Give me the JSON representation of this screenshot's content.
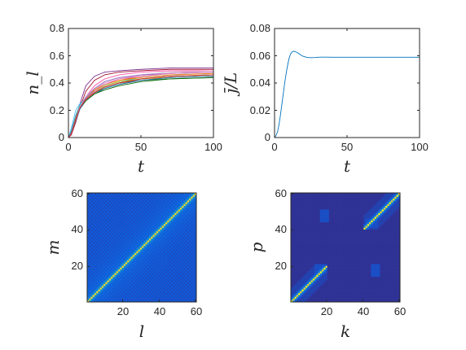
{
  "chart_data": [
    {
      "type": "line",
      "panel": "top-left",
      "xlabel": "t",
      "ylabel": "n_l",
      "xlim": [
        0,
        100
      ],
      "ylim": [
        0,
        0.8
      ],
      "xticks": [
        "0",
        "50",
        "100"
      ],
      "yticks": [
        "0",
        "0.2",
        "0.4",
        "0.6",
        "0.8"
      ],
      "grid": false,
      "legend": "none",
      "note": "approximately 20 colored curves, each rising from 0 and saturating between about 0.44 and 0.51",
      "series": [
        {
          "color": "#0072bd",
          "x": [
            0,
            2,
            5,
            8,
            12,
            18,
            25,
            35,
            50,
            70,
            100
          ],
          "y": [
            0.0,
            0.05,
            0.16,
            0.24,
            0.28,
            0.33,
            0.37,
            0.4,
            0.43,
            0.45,
            0.46
          ]
        },
        {
          "color": "#d95319",
          "x": [
            0,
            2,
            5,
            8,
            12,
            18,
            25,
            35,
            50,
            70,
            100
          ],
          "y": [
            0.0,
            0.04,
            0.15,
            0.24,
            0.29,
            0.35,
            0.39,
            0.42,
            0.45,
            0.47,
            0.48
          ]
        },
        {
          "color": "#edb120",
          "x": [
            0,
            2,
            5,
            8,
            12,
            18,
            25,
            35,
            50,
            70,
            100
          ],
          "y": [
            0.0,
            0.03,
            0.13,
            0.22,
            0.28,
            0.34,
            0.38,
            0.41,
            0.43,
            0.44,
            0.45
          ]
        },
        {
          "color": "#7e2f8e",
          "x": [
            0,
            2,
            5,
            8,
            12,
            18,
            25,
            35,
            50,
            70,
            100
          ],
          "y": [
            0.0,
            0.02,
            0.12,
            0.25,
            0.38,
            0.45,
            0.48,
            0.49,
            0.5,
            0.51,
            0.51
          ]
        },
        {
          "color": "#77ac30",
          "x": [
            0,
            2,
            5,
            8,
            12,
            18,
            25,
            35,
            50,
            70,
            100
          ],
          "y": [
            0.0,
            0.03,
            0.14,
            0.23,
            0.28,
            0.33,
            0.37,
            0.4,
            0.42,
            0.44,
            0.45
          ]
        },
        {
          "color": "#4dbeee",
          "x": [
            0,
            2,
            5,
            8,
            12,
            18,
            25,
            35,
            50,
            70,
            100
          ],
          "y": [
            0.0,
            0.07,
            0.2,
            0.25,
            0.29,
            0.33,
            0.37,
            0.4,
            0.43,
            0.45,
            0.46
          ]
        },
        {
          "color": "#a2142f",
          "x": [
            0,
            2,
            5,
            8,
            12,
            18,
            25,
            35,
            50,
            70,
            100
          ],
          "y": [
            0.0,
            0.02,
            0.11,
            0.22,
            0.34,
            0.42,
            0.46,
            0.48,
            0.49,
            0.5,
            0.5
          ]
        },
        {
          "color": "#ff4fa3",
          "x": [
            0,
            2,
            5,
            8,
            12,
            18,
            25,
            35,
            50,
            70,
            100
          ],
          "y": [
            0.0,
            0.03,
            0.13,
            0.22,
            0.3,
            0.38,
            0.43,
            0.46,
            0.48,
            0.49,
            0.49
          ]
        },
        {
          "color": "#2f8f3f",
          "x": [
            0,
            2,
            5,
            8,
            12,
            18,
            25,
            35,
            50,
            70,
            100
          ],
          "y": [
            0.0,
            0.03,
            0.14,
            0.23,
            0.28,
            0.33,
            0.36,
            0.39,
            0.42,
            0.43,
            0.44
          ]
        },
        {
          "color": "#8c564b",
          "x": [
            0,
            2,
            5,
            8,
            12,
            18,
            25,
            35,
            50,
            70,
            100
          ],
          "y": [
            0.0,
            0.03,
            0.13,
            0.22,
            0.28,
            0.33,
            0.37,
            0.4,
            0.42,
            0.44,
            0.45
          ]
        },
        {
          "color": "#e6a0c4",
          "x": [
            0,
            2,
            5,
            8,
            12,
            18,
            25,
            35,
            50,
            70,
            100
          ],
          "y": [
            0.0,
            0.03,
            0.14,
            0.23,
            0.29,
            0.35,
            0.4,
            0.43,
            0.46,
            0.48,
            0.49
          ]
        },
        {
          "color": "#17becf",
          "x": [
            0,
            2,
            5,
            8,
            12,
            18,
            25,
            35,
            50,
            70,
            100
          ],
          "y": [
            0.0,
            0.04,
            0.15,
            0.24,
            0.29,
            0.34,
            0.38,
            0.41,
            0.44,
            0.46,
            0.47
          ]
        },
        {
          "color": "#bcbd22",
          "x": [
            0,
            2,
            5,
            8,
            12,
            18,
            25,
            35,
            50,
            70,
            100
          ],
          "y": [
            0.0,
            0.03,
            0.13,
            0.22,
            0.28,
            0.34,
            0.38,
            0.41,
            0.43,
            0.45,
            0.46
          ]
        },
        {
          "color": "#ff7f0e",
          "x": [
            0,
            2,
            5,
            8,
            12,
            18,
            25,
            35,
            50,
            70,
            100
          ],
          "y": [
            0.0,
            0.03,
            0.14,
            0.23,
            0.29,
            0.35,
            0.39,
            0.42,
            0.44,
            0.46,
            0.47
          ]
        },
        {
          "color": "#1f77b4",
          "x": [
            0,
            2,
            5,
            8,
            12,
            18,
            25,
            35,
            50,
            70,
            100
          ],
          "y": [
            0.0,
            0.03,
            0.12,
            0.21,
            0.27,
            0.32,
            0.36,
            0.39,
            0.42,
            0.44,
            0.45
          ]
        },
        {
          "color": "#c5b0d5",
          "x": [
            0,
            2,
            5,
            8,
            12,
            18,
            25,
            35,
            50,
            70,
            100
          ],
          "y": [
            0.0,
            0.03,
            0.13,
            0.23,
            0.3,
            0.36,
            0.41,
            0.44,
            0.46,
            0.48,
            0.48
          ]
        },
        {
          "color": "#006400",
          "x": [
            0,
            2,
            5,
            8,
            12,
            18,
            25,
            35,
            50,
            70,
            100
          ],
          "y": [
            0.0,
            0.03,
            0.13,
            0.22,
            0.27,
            0.32,
            0.35,
            0.38,
            0.41,
            0.43,
            0.44
          ]
        },
        {
          "color": "#9467bd",
          "x": [
            0,
            2,
            5,
            8,
            12,
            18,
            25,
            35,
            50,
            70,
            100
          ],
          "y": [
            0.0,
            0.03,
            0.13,
            0.22,
            0.29,
            0.36,
            0.41,
            0.44,
            0.46,
            0.47,
            0.48
          ]
        },
        {
          "color": "#e377c2",
          "x": [
            0,
            2,
            5,
            8,
            12,
            18,
            25,
            35,
            50,
            70,
            100
          ],
          "y": [
            0.0,
            0.03,
            0.13,
            0.22,
            0.28,
            0.34,
            0.39,
            0.43,
            0.45,
            0.47,
            0.48
          ]
        },
        {
          "color": "#d62728",
          "x": [
            0,
            2,
            5,
            8,
            12,
            18,
            25,
            35,
            50,
            70,
            100
          ],
          "y": [
            0.0,
            0.03,
            0.13,
            0.22,
            0.28,
            0.33,
            0.37,
            0.4,
            0.43,
            0.45,
            0.46
          ]
        }
      ]
    },
    {
      "type": "line",
      "panel": "top-right",
      "xlabel": "t",
      "ylabel": "j̄/L",
      "xlim": [
        0,
        100
      ],
      "ylim": [
        0,
        0.08
      ],
      "xticks": [
        "0",
        "50",
        "100"
      ],
      "yticks": [
        "0",
        "0.02",
        "0.04",
        "0.06",
        "0.08"
      ],
      "grid": false,
      "legend": "none",
      "series": [
        {
          "color": "#0072bd",
          "x": [
            0,
            1,
            2,
            3,
            4,
            5,
            6,
            7,
            8,
            9,
            10,
            11,
            12,
            13,
            14,
            15,
            16,
            17,
            18,
            19,
            20,
            22,
            24,
            26,
            28,
            30,
            33,
            36,
            40,
            45,
            50,
            60,
            70,
            80,
            90,
            100
          ],
          "y": [
            0.0,
            0.0015,
            0.004,
            0.009,
            0.016,
            0.024,
            0.032,
            0.04,
            0.047,
            0.053,
            0.058,
            0.0612,
            0.0628,
            0.0633,
            0.0631,
            0.0627,
            0.0621,
            0.0614,
            0.0606,
            0.06,
            0.0595,
            0.0589,
            0.0586,
            0.0586,
            0.0587,
            0.0589,
            0.059,
            0.059,
            0.0589,
            0.0589,
            0.0589,
            0.0589,
            0.0589,
            0.0589,
            0.0589,
            0.0589
          ]
        }
      ]
    },
    {
      "type": "heatmap",
      "panel": "bottom-left",
      "xlabel": "l",
      "ylabel": "m",
      "xlim": [
        1,
        60
      ],
      "ylim": [
        1,
        60
      ],
      "xticks": [
        "20",
        "40",
        "60"
      ],
      "yticks": [
        "20",
        "40",
        "60"
      ],
      "grid_size": 60,
      "colormap": [
        "#352a87",
        "#0f5cdd",
        "#1481d6",
        "#06a4ca",
        "#2eb7a4",
        "#87bf77",
        "#d1bb59",
        "#fec832",
        "#f9fb0e"
      ],
      "description_values": {
        "diagonal": 0.9,
        "first_off_diagonal": 0.32,
        "second_off_diagonal": 0.22,
        "background_near": 0.18,
        "background_far": 0.1
      }
    },
    {
      "type": "heatmap",
      "panel": "bottom-right",
      "xlabel": "k",
      "ylabel": "p",
      "xlim": [
        1,
        60
      ],
      "ylim": [
        1,
        60
      ],
      "xticks": [
        "20",
        "40",
        "60"
      ],
      "yticks": [
        "20",
        "40",
        "60"
      ],
      "grid_size": 60,
      "colormap": [
        "#352a87",
        "#0f5cdd",
        "#1481d6",
        "#06a4ca",
        "#2eb7a4",
        "#87bf77",
        "#d1bb59",
        "#fec832",
        "#f9fb0e"
      ],
      "description_values": {
        "diagonal_blocks": [
          [
            1,
            20
          ],
          [
            41,
            60
          ]
        ],
        "diagonal_peak": 1.0,
        "background": 0.02
      }
    }
  ]
}
